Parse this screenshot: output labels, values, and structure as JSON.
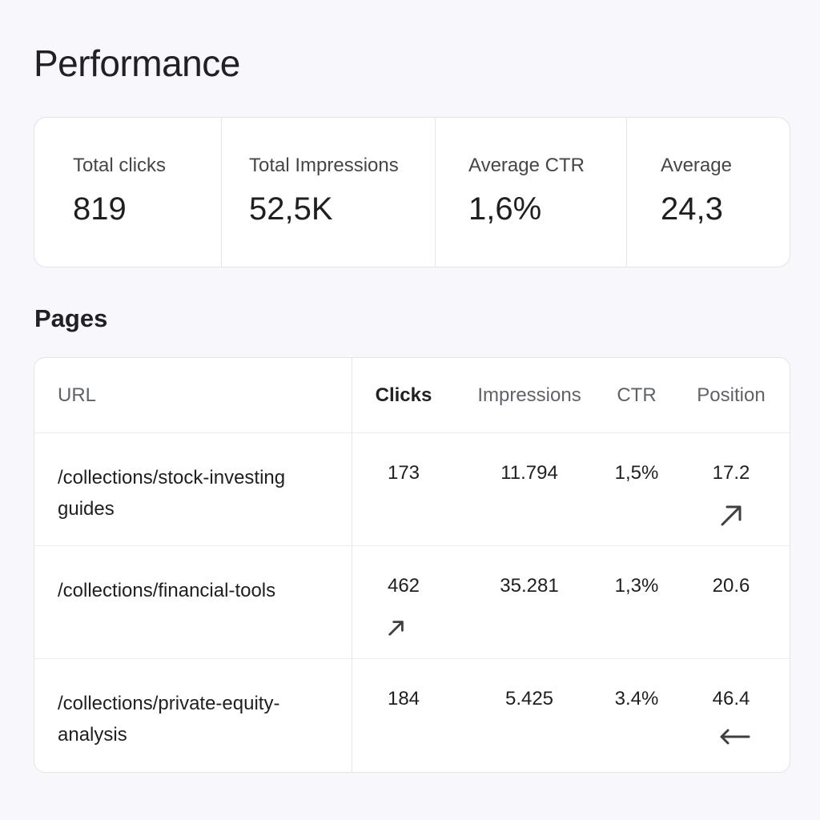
{
  "page": {
    "title": "Performance"
  },
  "summary": {
    "metrics": [
      {
        "label": "Total clicks",
        "value": "819"
      },
      {
        "label": "Total Impressions",
        "value": "52,5K"
      },
      {
        "label": "Average CTR",
        "value": "1,6%"
      },
      {
        "label": "Average",
        "value": "24,3"
      }
    ]
  },
  "pages": {
    "title": "Pages",
    "columns": {
      "url": "URL",
      "clicks": "Clicks",
      "impressions": "Impressions",
      "ctr": "CTR",
      "position": "Position"
    },
    "rows": [
      {
        "url": "/collections/stock-investing guides",
        "clicks": "173",
        "impressions": "11.794",
        "ctr": "1,5%",
        "position": "17.2",
        "trend_icon": "arrow-up-right-icon",
        "trend_column": "position"
      },
      {
        "url": "/collections/financial-tools",
        "clicks": "462",
        "impressions": "35.281",
        "ctr": "1,3%",
        "position": "20.6",
        "trend_icon": "arrow-up-right-icon",
        "trend_column": "clicks"
      },
      {
        "url": "/collections/private-equity-analysis",
        "clicks": "184",
        "impressions": "5.425",
        "ctr": "3.4%",
        "position": "46.4",
        "trend_icon": "arrow-left-icon",
        "trend_column": "position"
      }
    ]
  },
  "colors": {
    "background": "#f8f8fc",
    "card": "#ffffff",
    "border": "#e3e3e8",
    "text_primary": "#1f1f1f",
    "text_secondary": "#5f6368"
  }
}
